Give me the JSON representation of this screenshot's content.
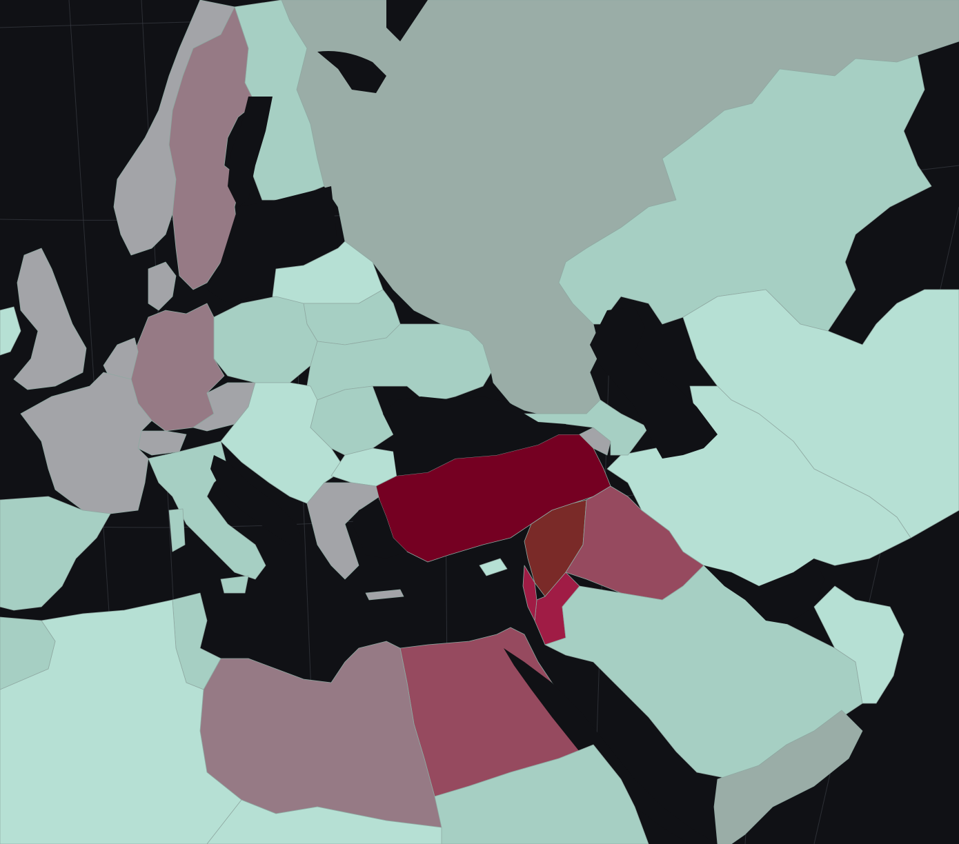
{
  "map": {
    "projection": "conic",
    "palette": {
      "sea": "#101115",
      "none_light": "#b6e0d4",
      "none_mid": "#a6cfc3",
      "none_gray": "#9aada7",
      "low_gray": "#a3a4a8",
      "low_pink": "#967a85",
      "mid_pink": "#964a5f",
      "mid_red": "#a01c45",
      "high": "#750022",
      "overlap_brown": "#7a2a28"
    },
    "regions": [
      {
        "name": "turkey",
        "category": "high"
      },
      {
        "name": "syria",
        "category": "overlap_brown"
      },
      {
        "name": "iraq",
        "category": "mid_pink"
      },
      {
        "name": "jordan",
        "category": "mid_red"
      },
      {
        "name": "lebanon",
        "category": "mid_red"
      },
      {
        "name": "egypt",
        "category": "mid_pink"
      },
      {
        "name": "libya",
        "category": "low_pink"
      },
      {
        "name": "germany",
        "category": "low_pink"
      },
      {
        "name": "sweden",
        "category": "low_pink"
      },
      {
        "name": "armenia",
        "category": "low_gray"
      },
      {
        "name": "france",
        "category": "low_gray"
      },
      {
        "name": "united-kingdom",
        "category": "low_gray"
      },
      {
        "name": "greece",
        "category": "low_gray"
      },
      {
        "name": "denmark",
        "category": "low_gray"
      },
      {
        "name": "netherlands",
        "category": "low_gray"
      },
      {
        "name": "belgium",
        "category": "low_gray"
      },
      {
        "name": "switzerland",
        "category": "low_gray"
      },
      {
        "name": "austria",
        "category": "low_gray"
      },
      {
        "name": "norway",
        "category": "low_gray"
      },
      {
        "name": "russia",
        "category": "none_gray"
      },
      {
        "name": "yemen",
        "category": "none_gray"
      },
      {
        "name": "sudan",
        "category": "none_mid"
      },
      {
        "name": "finland",
        "category": "none_mid"
      },
      {
        "name": "poland",
        "category": "none_mid"
      },
      {
        "name": "belarus",
        "category": "none_mid"
      },
      {
        "name": "ukraine",
        "category": "none_mid"
      },
      {
        "name": "italy",
        "category": "none_mid"
      },
      {
        "name": "kazakhstan",
        "category": "none_mid"
      },
      {
        "name": "saudi-arabia",
        "category": "none_mid"
      },
      {
        "name": "iran",
        "category": "none_light"
      },
      {
        "name": "algeria",
        "category": "none_light"
      },
      {
        "name": "tunisia",
        "category": "none_mid"
      },
      {
        "name": "spain",
        "category": "none_mid"
      },
      {
        "name": "romania",
        "category": "none_mid"
      },
      {
        "name": "bulgaria",
        "category": "none_light"
      },
      {
        "name": "balkans",
        "category": "none_light"
      },
      {
        "name": "central-asia",
        "category": "none_light"
      },
      {
        "name": "baltics",
        "category": "none_light"
      },
      {
        "name": "georgia-azerbaijan",
        "category": "none_mid"
      },
      {
        "name": "oman-uae",
        "category": "none_light"
      },
      {
        "name": "chad",
        "category": "none_light"
      },
      {
        "name": "niger-mali",
        "category": "none_light"
      }
    ]
  }
}
